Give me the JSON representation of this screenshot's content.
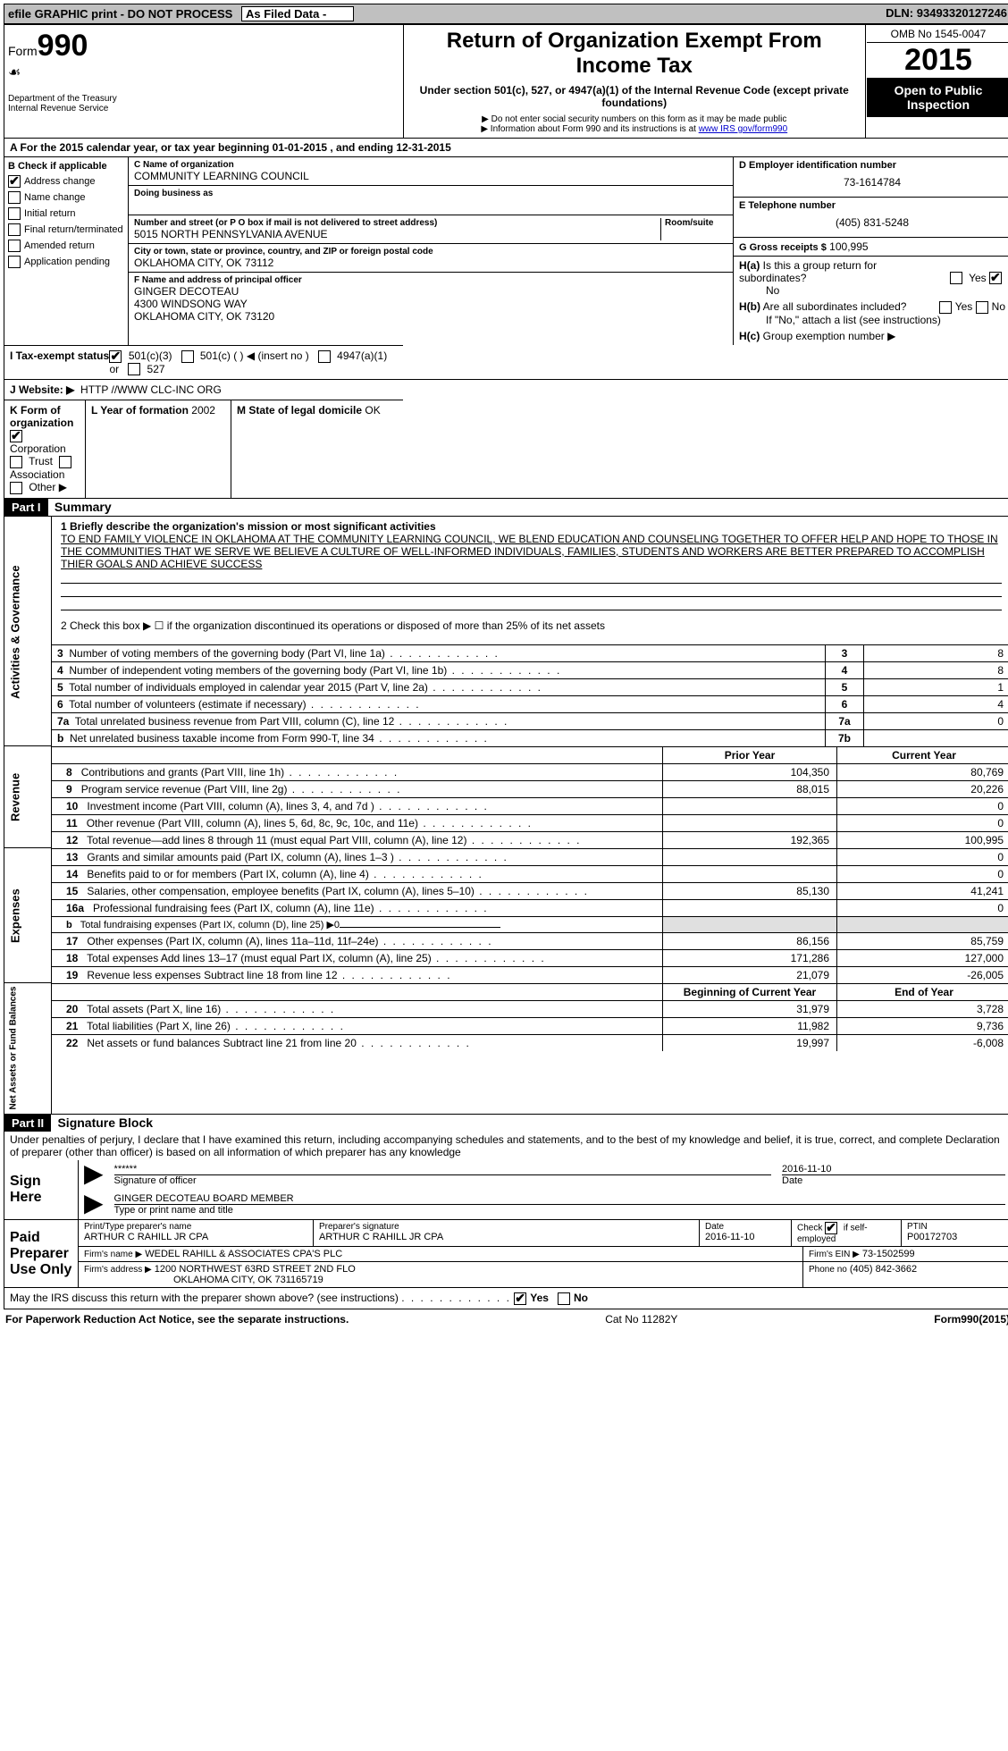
{
  "topbar": {
    "efile": "efile GRAPHIC print - DO NOT PROCESS",
    "asfiled": "As Filed Data -",
    "dln_label": "DLN:",
    "dln": "93493320127246"
  },
  "header": {
    "form_word": "Form",
    "form_num": "990",
    "dept1": "Department of the Treasury",
    "dept2": "Internal Revenue Service",
    "title": "Return of Organization Exempt From Income Tax",
    "sub": "Under section 501(c), 527, or 4947(a)(1) of the Internal Revenue Code (except private foundations)",
    "note1": "▶ Do not enter social security numbers on this form as it may be made public",
    "note2_a": "▶ Information about Form 990 and its instructions is at ",
    "note2_link": "www IRS gov/form990",
    "omb": "OMB No 1545-0047",
    "year": "2015",
    "open": "Open to Public Inspection"
  },
  "rowA": "A  For the 2015 calendar year, or tax year beginning 01-01-2015   , and ending 12-31-2015",
  "colB": {
    "title": "B Check if applicable",
    "items": [
      {
        "label": "Address change",
        "checked": true
      },
      {
        "label": "Name change",
        "checked": false
      },
      {
        "label": "Initial return",
        "checked": false
      },
      {
        "label": "Final return/terminated",
        "checked": false
      },
      {
        "label": "Amended return",
        "checked": false
      },
      {
        "label": "Application pending",
        "checked": false
      }
    ]
  },
  "colC": {
    "c_lbl": "C Name of organization",
    "c_val": "COMMUNITY LEARNING COUNCIL",
    "dba_lbl": "Doing business as",
    "dba_val": "",
    "addr_lbl": "Number and street (or P O box if mail is not delivered to street address)",
    "room_lbl": "Room/suite",
    "addr_val": "5015 NORTH PENNSYLVANIA AVENUE",
    "city_lbl": "City or town, state or province, country, and ZIP or foreign postal code",
    "city_val": "OKLAHOMA CITY, OK  73112",
    "f_lbl": "F Name and address of principal officer",
    "f_val1": "GINGER DECOTEAU",
    "f_val2": "4300 WINDSONG WAY",
    "f_val3": "OKLAHOMA CITY, OK  73120"
  },
  "colD": {
    "d_lbl": "D Employer identification number",
    "d_val": "73-1614784",
    "e_lbl": "E Telephone number",
    "e_val": "(405) 831-5248",
    "g_lbl": "G Gross receipts $",
    "g_val": "100,995",
    "ha_lbl": "H(a)  Is this a group return for subordinates?",
    "ha_val": "No",
    "hb_lbl": "H(b)  Are all subordinates included?",
    "hb_note": "If \"No,\" attach a list  (see instructions)",
    "hc_lbl": "H(c)  Group exemption number ▶",
    "yes": "Yes",
    "no": "No"
  },
  "rowI": {
    "lbl": "I  Tax-exempt status",
    "o1": "501(c)(3)",
    "o2": "501(c) (  ) ◀ (insert no )",
    "o3": "4947(a)(1) or",
    "o4": "527"
  },
  "rowJ": {
    "lbl": "J  Website: ▶",
    "val": "HTTP //WWW CLC-INC ORG"
  },
  "rowK": {
    "lbl": "K Form of organization",
    "o1": "Corporation",
    "o2": "Trust",
    "o3": "Association",
    "o4": "Other ▶",
    "l_lbl": "L Year of formation",
    "l_val": "2002",
    "m_lbl": "M State of legal domicile",
    "m_val": "OK"
  },
  "part1": {
    "hdr": "Part I",
    "title": "Summary",
    "mission_lbl": "1 Briefly describe the organization's mission or most significant activities",
    "mission": "TO END FAMILY VIOLENCE IN OKLAHOMA  AT THE COMMUNITY LEARNING COUNCIL, WE BLEND EDUCATION AND COUNSELING TOGETHER TO OFFER HELP AND HOPE TO THOSE IN THE COMMUNITIES THAT WE SERVE  WE BELIEVE A CULTURE OF WELL-INFORMED INDIVIDUALS, FAMILIES, STUDENTS AND WORKERS ARE BETTER PREPARED TO ACCOMPLISH THIER GOALS AND ACHIEVE SUCCESS",
    "line2": "2  Check this box ▶ ☐ if the organization discontinued its operations or disposed of more than 25% of its net assets",
    "tab_activities": "Activities & Governance",
    "tab_revenue": "Revenue",
    "tab_expenses": "Expenses",
    "tab_net": "Net Assets or Fund Balances",
    "rows_act": [
      {
        "n": "3",
        "d": "Number of voting members of the governing body (Part VI, line 1a)",
        "k": "3",
        "v": "8"
      },
      {
        "n": "4",
        "d": "Number of independent voting members of the governing body (Part VI, line 1b)",
        "k": "4",
        "v": "8"
      },
      {
        "n": "5",
        "d": "Total number of individuals employed in calendar year 2015 (Part V, line 2a)",
        "k": "5",
        "v": "1"
      },
      {
        "n": "6",
        "d": "Total number of volunteers (estimate if necessary)",
        "k": "6",
        "v": "4"
      },
      {
        "n": "7a",
        "d": "Total unrelated business revenue from Part VIII, column (C), line 12",
        "k": "7a",
        "v": "0"
      },
      {
        "n": "b",
        "d": "Net unrelated business taxable income from Form 990-T, line 34",
        "k": "7b",
        "v": ""
      }
    ],
    "hdr_prior": "Prior Year",
    "hdr_curr": "Current Year",
    "rows_rev": [
      {
        "n": "8",
        "d": "Contributions and grants (Part VIII, line 1h)",
        "p": "104,350",
        "c": "80,769"
      },
      {
        "n": "9",
        "d": "Program service revenue (Part VIII, line 2g)",
        "p": "88,015",
        "c": "20,226"
      },
      {
        "n": "10",
        "d": "Investment income (Part VIII, column (A), lines 3, 4, and 7d )",
        "p": "",
        "c": "0"
      },
      {
        "n": "11",
        "d": "Other revenue (Part VIII, column (A), lines 5, 6d, 8c, 9c, 10c, and 11e)",
        "p": "",
        "c": "0"
      },
      {
        "n": "12",
        "d": "Total revenue—add lines 8 through 11 (must equal Part VIII, column (A), line 12)",
        "p": "192,365",
        "c": "100,995"
      }
    ],
    "rows_exp": [
      {
        "n": "13",
        "d": "Grants and similar amounts paid (Part IX, column (A), lines 1–3 )",
        "p": "",
        "c": "0"
      },
      {
        "n": "14",
        "d": "Benefits paid to or for members (Part IX, column (A), line 4)",
        "p": "",
        "c": "0"
      },
      {
        "n": "15",
        "d": "Salaries, other compensation, employee benefits (Part IX, column (A), lines 5–10)",
        "p": "85,130",
        "c": "41,241"
      },
      {
        "n": "16a",
        "d": "Professional fundraising fees (Part IX, column (A), line 11e)",
        "p": "",
        "c": "0"
      },
      {
        "n": "b",
        "d": "Total fundraising expenses (Part IX, column (D), line 25) ▶0",
        "p": "",
        "c": "",
        "small": true,
        "nocells": true
      },
      {
        "n": "17",
        "d": "Other expenses (Part IX, column (A), lines 11a–11d, 11f–24e)",
        "p": "86,156",
        "c": "85,759"
      },
      {
        "n": "18",
        "d": "Total expenses  Add lines 13–17 (must equal Part IX, column (A), line 25)",
        "p": "171,286",
        "c": "127,000"
      },
      {
        "n": "19",
        "d": "Revenue less expenses  Subtract line 18 from line 12",
        "p": "21,079",
        "c": "-26,005"
      }
    ],
    "hdr_boy": "Beginning of Current Year",
    "hdr_eoy": "End of Year",
    "rows_net": [
      {
        "n": "20",
        "d": "Total assets (Part X, line 16)",
        "p": "31,979",
        "c": "3,728"
      },
      {
        "n": "21",
        "d": "Total liabilities (Part X, line 26)",
        "p": "11,982",
        "c": "9,736"
      },
      {
        "n": "22",
        "d": "Net assets or fund balances  Subtract line 21 from line 20",
        "p": "19,997",
        "c": "-6,008"
      }
    ]
  },
  "part2": {
    "hdr": "Part II",
    "title": "Signature Block",
    "decl": "Under penalties of perjury, I declare that I have examined this return, including accompanying schedules and statements, and to the best of my knowledge and belief, it is true, correct, and complete  Declaration of preparer (other than officer) is based on all information of which preparer has any knowledge",
    "sign_here": "Sign Here",
    "sig_stars": "******",
    "sig_of": "Signature of officer",
    "sig_date": "2016-11-10",
    "sig_date_lbl": "Date",
    "name": "GINGER DECOTEAU BOARD MEMBER",
    "name_lbl": "Type or print name and title",
    "paid": "Paid Preparer Use Only",
    "pp_name_lbl": "Print/Type preparer's name",
    "pp_name": "ARTHUR C RAHILL JR CPA",
    "pp_sig_lbl": "Preparer's signature",
    "pp_sig": "ARTHUR C RAHILL JR CPA",
    "pp_date_lbl": "Date",
    "pp_date": "2016-11-10",
    "pp_check": "Check ☑ if self-employed",
    "ptin_lbl": "PTIN",
    "ptin": "P00172703",
    "firm_name_lbl": "Firm's name    ▶",
    "firm_name": "WEDEL RAHILL & ASSOCIATES CPA'S PLC",
    "firm_ein_lbl": "Firm's EIN ▶",
    "firm_ein": "73-1502599",
    "firm_addr_lbl": "Firm's address ▶",
    "firm_addr": "1200 NORTHWEST 63RD STREET 2ND FLO",
    "firm_city": "OKLAHOMA CITY, OK  731165719",
    "phone_lbl": "Phone no",
    "phone": "(405) 842-3662",
    "discuss": "May the IRS discuss this return with the preparer shown above? (see instructions)",
    "yes": "Yes",
    "no": "No"
  },
  "footer": {
    "l": "For Paperwork Reduction Act Notice, see the separate instructions.",
    "m": "Cat No 11282Y",
    "r": "Form990(2015)"
  }
}
